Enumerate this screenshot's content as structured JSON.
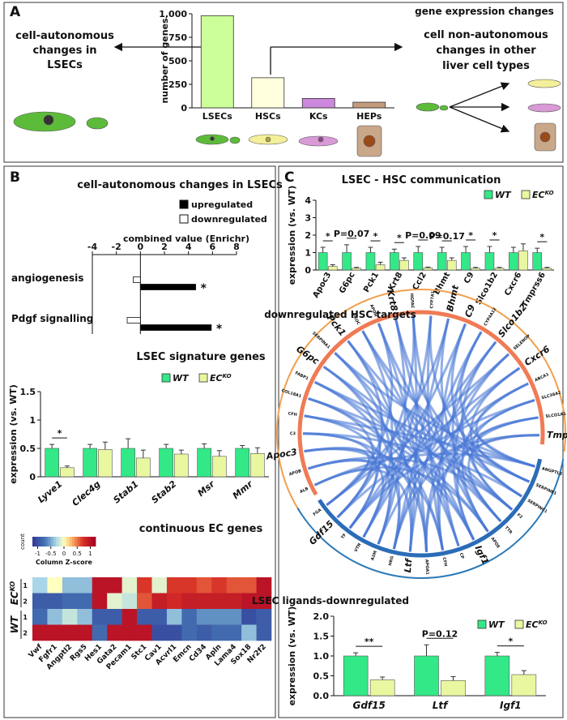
{
  "panel_labels": [
    "A",
    "B",
    "C"
  ],
  "panel_a": {
    "heading": "gene expression changes",
    "left_text": [
      "cell-autonomous",
      "changes in",
      "LSECs"
    ],
    "right_text": [
      "cell non-autonomous",
      "changes in other",
      "liver cell types"
    ]
  },
  "panel_b_title": "cell-autonomous changes in LSECs",
  "chart_data": [
    {
      "type": "bar",
      "ylabel": "number of genes",
      "categories": [
        "LSECs",
        "HSCs",
        "KCs",
        "HEPs"
      ],
      "values": [
        980,
        320,
        100,
        60
      ],
      "colors": [
        "#ccff99",
        "#ffffdd",
        "#cc88dd",
        "#c49a7c"
      ],
      "ylim": [
        0,
        1000
      ],
      "yticks": [
        0,
        250,
        500,
        750,
        {
          "value": 1000,
          "label": "1,000"
        }
      ]
    },
    {
      "type": "hbar",
      "title": "combined value (Enrichr)",
      "categories": [
        "angiogenesis",
        "Pdgf signalling"
      ],
      "series": [
        {
          "name": "upregulated",
          "color": "#000000",
          "values": [
            4.6,
            5.9
          ]
        },
        {
          "name": "downregulated",
          "color": "#ffffff",
          "values": [
            -0.6,
            -1.1
          ]
        }
      ],
      "annotations": [
        "*",
        "*"
      ],
      "xlim": [
        -4,
        8
      ],
      "xticks": [
        -4,
        -2,
        0,
        2,
        4,
        6,
        8
      ]
    },
    {
      "type": "bar",
      "title": "LSEC signature genes",
      "ylabel": "expression (vs. WT)",
      "categories": [
        "Lyve1",
        "Clec4g",
        "Stab1",
        "Stab2",
        "Msr",
        "Mmr"
      ],
      "series": [
        {
          "name": "WT",
          "color": "#33e887",
          "values": [
            0.5,
            0.5,
            0.5,
            0.5,
            0.5,
            0.5
          ],
          "errors": [
            0.07,
            0.07,
            0.17,
            0.07,
            0.08,
            0.05
          ]
        },
        {
          "name": "EC",
          "name_superscript": "KO",
          "color": "#e9f7a0",
          "values": [
            0.16,
            0.48,
            0.33,
            0.4,
            0.36,
            0.41
          ],
          "errors": [
            0.03,
            0.13,
            0.14,
            0.07,
            0.1,
            0.1
          ]
        }
      ],
      "annotations": [
        "*",
        null,
        null,
        null,
        null,
        null
      ],
      "ylim": [
        0,
        1.5
      ],
      "yticks": [
        0,
        0.5,
        1,
        1.5
      ]
    },
    {
      "type": "heatmap",
      "title": "continuous EC genes",
      "x": [
        "Vwf",
        "Fgfr1",
        "Angptl2",
        "Rgs5",
        "Hes1",
        "Gata2",
        "Pecam1",
        "Stc1",
        "Cav1",
        "Acvrl1",
        "Emcn",
        "Cd34",
        "Apln",
        "Lama4",
        "Sox18",
        "Nr2f2"
      ],
      "y": [
        "1",
        "2",
        "1",
        "2"
      ],
      "row_groups": [
        {
          "label": "EC",
          "superscript": "KO"
        },
        {
          "label": "WT"
        }
      ],
      "values": [
        [
          -0.3,
          0.0,
          -0.4,
          -0.4,
          1.0,
          1.0,
          -0.1,
          0.7,
          -0.1,
          0.7,
          0.7,
          0.6,
          0.7,
          0.6,
          0.6,
          1.0
        ],
        [
          -0.9,
          -0.9,
          -0.8,
          -0.8,
          1.0,
          -0.1,
          -0.2,
          0.6,
          0.9,
          0.8,
          0.9,
          0.9,
          0.9,
          0.9,
          1.0,
          1.0
        ],
        [
          -0.8,
          -0.4,
          -0.2,
          -0.4,
          -0.9,
          -0.9,
          1.0,
          -0.9,
          -0.9,
          -0.4,
          -0.8,
          -0.6,
          -0.6,
          -0.6,
          -1.0,
          -0.9
        ],
        [
          1.0,
          1.0,
          1.0,
          1.0,
          -0.8,
          1.0,
          1.0,
          1.0,
          -1.0,
          -1.0,
          -0.8,
          -0.9,
          -0.8,
          -0.8,
          -0.4,
          -0.9
        ]
      ],
      "colorbar": {
        "title": "Column Z-score",
        "label": "count",
        "clim": [
          -1.2,
          1.2
        ],
        "ticks": [
          -1,
          -0.5,
          0,
          0.5,
          1
        ]
      }
    },
    {
      "type": "bar",
      "title": "LSEC - HSC communication",
      "ylabel": "expression (vs. WT)",
      "category_color": "#e8913a",
      "categories": [
        "Apoc3",
        "G6pc",
        "Pck1",
        "Krt8",
        "Ccl2",
        "Bhmt",
        "C9",
        "Slco1b2",
        "Cxcr6",
        "Tmprss6"
      ],
      "series": [
        {
          "name": "WT",
          "color": "#33e887",
          "values": [
            1,
            1,
            1,
            1,
            1,
            1,
            1,
            1,
            1,
            1
          ],
          "errors": [
            0.3,
            0.45,
            0.3,
            0.2,
            0.35,
            0.3,
            0.35,
            0.35,
            0.3,
            0.25
          ]
        },
        {
          "name": "EC",
          "name_superscript": "KO",
          "color": "#e9f7a0",
          "values": [
            0.2,
            0.1,
            0.3,
            0.55,
            0.12,
            0.55,
            0.1,
            0.1,
            1.1,
            0.1
          ],
          "errors": [
            0.1,
            0.05,
            0.15,
            0.15,
            0.05,
            0.15,
            0.05,
            0.05,
            0.4,
            0.05
          ]
        }
      ],
      "annotations": [
        "*",
        "P=0.07",
        "*",
        "*",
        "P=0.09",
        "P=0.17",
        "*",
        "*",
        null,
        "*"
      ],
      "ylim": [
        0,
        4
      ],
      "yticks": [
        0,
        1,
        2,
        3,
        4
      ]
    },
    {
      "type": "chord",
      "target_title": "downregulated HSC targets",
      "ligand_title": "LSEC ligands-downregulated",
      "targets": [
        {
          "label": "ALB"
        },
        {
          "label": "APOB"
        },
        {
          "label": "Apoc3",
          "highlight": true
        },
        {
          "label": "C3"
        },
        {
          "label": "CFH"
        },
        {
          "label": "COL18A1"
        },
        {
          "label": "FABP1"
        },
        {
          "label": "G6pc",
          "highlight": true
        },
        {
          "label": "SERPINA1"
        },
        {
          "label": "Pck1",
          "highlight": true
        },
        {
          "label": "PROC"
        },
        {
          "label": "APOH"
        },
        {
          "label": "Krt8",
          "highlight": true
        },
        {
          "label": "HGFAC"
        },
        {
          "label": "CYP7A1"
        },
        {
          "label": "Bhmt",
          "highlight": true
        },
        {
          "label": "C9",
          "highlight": true
        },
        {
          "label": "CYP4A12"
        },
        {
          "label": "Slco1b2",
          "highlight": true
        },
        {
          "label": "SELENOP"
        },
        {
          "label": "Cxcr6",
          "highlight": true
        },
        {
          "label": "ABCA1"
        },
        {
          "label": "SLC38A2"
        },
        {
          "label": "SLCO1A1"
        },
        {
          "label": "Tmprss6",
          "highlight": true
        }
      ],
      "ligands": [
        {
          "label": "ANGPTL3"
        },
        {
          "label": "SERPINE1"
        },
        {
          "label": "SERPINC1"
        },
        {
          "label": "F2"
        },
        {
          "label": "TTR"
        },
        {
          "label": "APOE"
        },
        {
          "label": "Igf1",
          "highlight": true
        },
        {
          "label": "CP"
        },
        {
          "label": "CFH"
        },
        {
          "label": "APOA1"
        },
        {
          "label": "Ltf",
          "highlight": true
        },
        {
          "label": "HRG"
        },
        {
          "label": "A2M"
        },
        {
          "label": "VTN"
        },
        {
          "label": "TF"
        },
        {
          "label": "Gdf15",
          "highlight": true
        },
        {
          "label": "FGA"
        }
      ]
    },
    {
      "type": "bar",
      "ylabel": "expression (vs. WT)",
      "category_color": "#2a7ab8",
      "categories": [
        "Gdf15",
        "Ltf",
        "Igf1"
      ],
      "series": [
        {
          "name": "WT",
          "color": "#33e887",
          "values": [
            1,
            1,
            1
          ],
          "errors": [
            0.08,
            0.28,
            0.09
          ]
        },
        {
          "name": "EC",
          "name_superscript": "KO",
          "color": "#e9f7a0",
          "values": [
            0.4,
            0.38,
            0.53
          ],
          "errors": [
            0.07,
            0.1,
            0.1
          ]
        }
      ],
      "annotations": [
        "**",
        "P=0.12",
        "*"
      ],
      "ylim": [
        0,
        2
      ],
      "yticks": [
        {
          "value": 0,
          "label": "0.0"
        },
        {
          "value": 0.5,
          "label": "0.5"
        },
        {
          "value": 1,
          "label": "1.0"
        },
        {
          "value": 1.5,
          "label": "1.5"
        },
        {
          "value": 2,
          "label": "2.0"
        }
      ]
    }
  ]
}
